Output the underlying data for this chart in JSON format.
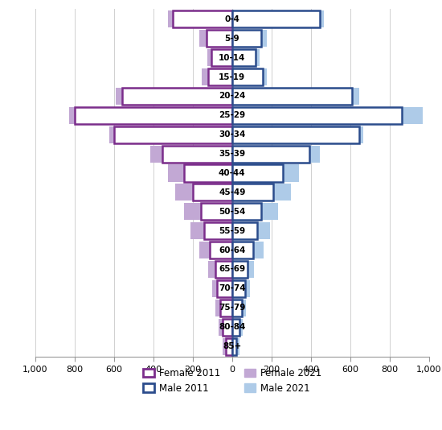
{
  "age_groups": [
    "85+",
    "80-84",
    "75-79",
    "70-74",
    "65-69",
    "60-64",
    "55-59",
    "50-54",
    "45-49",
    "40-44",
    "35-39",
    "30-34",
    "25-29",
    "20-24",
    "15-19",
    "10-14",
    "5-9",
    "0-4"
  ],
  "female_2011": [
    30,
    50,
    60,
    75,
    85,
    115,
    140,
    160,
    200,
    245,
    355,
    600,
    800,
    560,
    120,
    105,
    130,
    300
  ],
  "female_2021": [
    48,
    68,
    85,
    100,
    120,
    165,
    210,
    245,
    290,
    325,
    415,
    625,
    830,
    590,
    155,
    125,
    165,
    325
  ],
  "male_2011": [
    22,
    38,
    52,
    65,
    80,
    108,
    128,
    148,
    208,
    258,
    395,
    645,
    865,
    608,
    155,
    118,
    148,
    448
  ],
  "male_2021": [
    38,
    55,
    72,
    90,
    112,
    162,
    195,
    232,
    298,
    342,
    448,
    668,
    968,
    648,
    178,
    138,
    178,
    468
  ],
  "xlim": 1000,
  "female_2011_color": "#7B2D8B",
  "female_2021_color": "#C2A8D4",
  "male_2011_color": "#2B4C8C",
  "male_2021_color": "#AECBE8",
  "background_color": "#ffffff",
  "grid_color": "#d0d0d0"
}
